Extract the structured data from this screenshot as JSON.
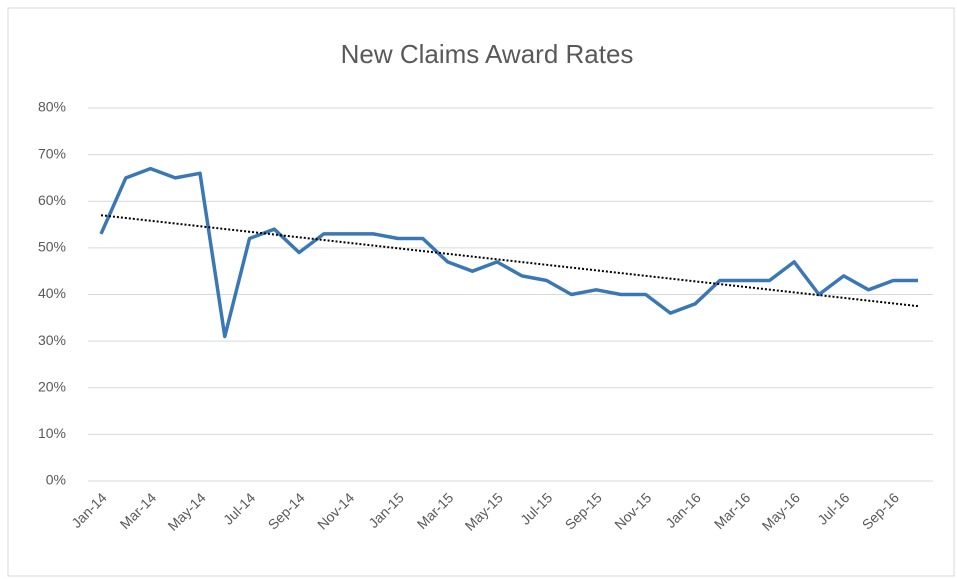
{
  "chart_data": {
    "type": "line",
    "title": "New Claims Award Rates",
    "categories": [
      "Jan-14",
      null,
      "Mar-14",
      null,
      "May-14",
      null,
      "Jul-14",
      null,
      "Sep-14",
      null,
      "Nov-14",
      null,
      "Jan-15",
      null,
      "Mar-15",
      null,
      "May-15",
      null,
      "Jul-15",
      null,
      "Sep-15",
      null,
      "Nov-15",
      null,
      "Jan-16",
      null,
      "Mar-16",
      null,
      "May-16",
      null,
      "Jul-16",
      null,
      "Sep-16",
      null
    ],
    "series": [
      {
        "color": "#3a78b5",
        "values": [
          53,
          65,
          67,
          65,
          66,
          31,
          52,
          54,
          49,
          53,
          53,
          53,
          52,
          52,
          47,
          45,
          47,
          44,
          43,
          40,
          41,
          40,
          40,
          36,
          38,
          43,
          43,
          43,
          47,
          40,
          44,
          41,
          43,
          43
        ]
      }
    ],
    "trendline": {
      "start": 57,
      "end": 37.5,
      "color": "#000000",
      "style": "dotted"
    },
    "ylim": [
      0,
      80
    ],
    "yticks": [
      {
        "value": 0,
        "label": "0%"
      },
      {
        "value": 10,
        "label": "10%"
      },
      {
        "value": 20,
        "label": "20%"
      },
      {
        "value": 30,
        "label": "30%"
      },
      {
        "value": 40,
        "label": "40%"
      },
      {
        "value": 50,
        "label": "50%"
      },
      {
        "value": 60,
        "label": "60%"
      },
      {
        "value": 70,
        "label": "70%"
      },
      {
        "value": 80,
        "label": "80%"
      }
    ],
    "grid": true
  }
}
